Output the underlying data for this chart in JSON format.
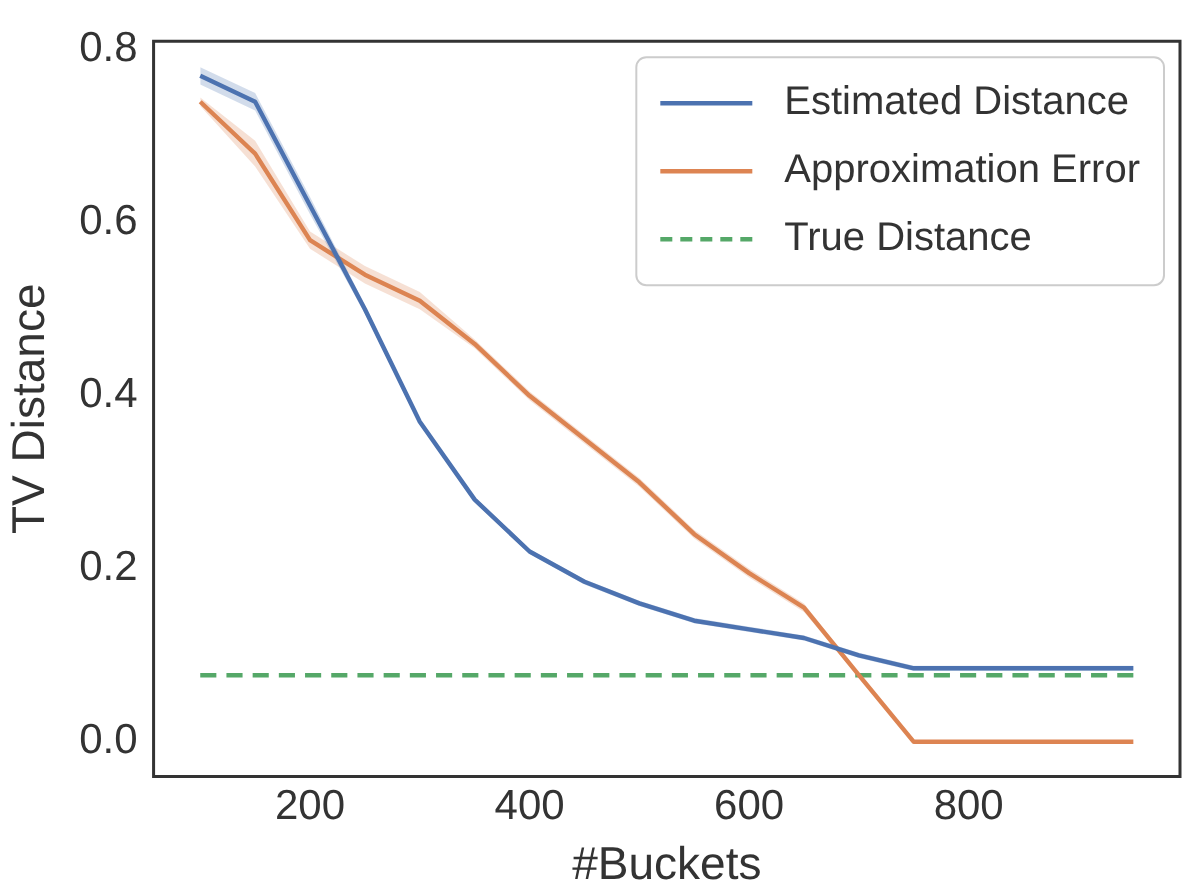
{
  "chart_data": {
    "type": "line",
    "xlabel": "#Buckets",
    "ylabel": "TV Distance",
    "x": [
      100,
      150,
      200,
      250,
      300,
      350,
      400,
      450,
      500,
      550,
      600,
      650,
      700,
      750,
      800,
      850,
      900,
      950
    ],
    "series": [
      {
        "name": "Estimated Distance",
        "color": "#4c72b0",
        "values": [
          0.77,
          0.74,
          0.62,
          0.5,
          0.37,
          0.28,
          0.22,
          0.185,
          0.16,
          0.14,
          0.13,
          0.12,
          0.1,
          0.085,
          0.085,
          0.085,
          0.085,
          0.085
        ],
        "lower": [
          0.76,
          0.73,
          0.61,
          0.495,
          0.367,
          0.277,
          0.217,
          0.182,
          0.157,
          0.137,
          0.127,
          0.117,
          0.097,
          0.082,
          0.082,
          0.082,
          0.082,
          0.082
        ],
        "upper": [
          0.78,
          0.75,
          0.63,
          0.505,
          0.373,
          0.283,
          0.223,
          0.188,
          0.163,
          0.143,
          0.133,
          0.123,
          0.103,
          0.088,
          0.088,
          0.088,
          0.088,
          0.088
        ]
      },
      {
        "name": "Approximation Error",
        "color": "#dd8452",
        "values": [
          0.74,
          0.68,
          0.58,
          0.54,
          0.51,
          0.46,
          0.4,
          0.35,
          0.3,
          0.24,
          0.195,
          0.155,
          0.077,
          0.0,
          0.0,
          0.0,
          0.0,
          0.0
        ],
        "lower": [
          0.735,
          0.665,
          0.57,
          0.53,
          0.5,
          0.455,
          0.395,
          0.345,
          0.295,
          0.235,
          0.19,
          0.15,
          0.075,
          0.0,
          0.0,
          0.0,
          0.0,
          0.0
        ],
        "upper": [
          0.745,
          0.695,
          0.59,
          0.55,
          0.52,
          0.465,
          0.405,
          0.355,
          0.305,
          0.245,
          0.2,
          0.16,
          0.079,
          0.0,
          0.0,
          0.0,
          0.0,
          0.0
        ]
      },
      {
        "name": "True Distance",
        "color": "#55a868",
        "line_style": "dashed",
        "values": [
          0.077,
          0.077,
          0.077,
          0.077,
          0.077,
          0.077,
          0.077,
          0.077,
          0.077,
          0.077,
          0.077,
          0.077,
          0.077,
          0.077,
          0.077,
          0.077,
          0.077,
          0.077
        ]
      }
    ],
    "xlim": [
      57.5,
      992.5
    ],
    "xticks": [
      200,
      400,
      600,
      800
    ],
    "ylim": [
      -0.04,
      0.81
    ],
    "yticks": [
      {
        "value": 0,
        "label": "0.0"
      },
      {
        "value": 0.2,
        "label": "0.2"
      },
      {
        "value": 0.4,
        "label": "0.4"
      },
      {
        "value": 0.6,
        "label": "0.6"
      },
      {
        "value": 0.8,
        "label": "0.8"
      }
    ],
    "legend": "top right",
    "grid": false,
    "marker": "none"
  }
}
